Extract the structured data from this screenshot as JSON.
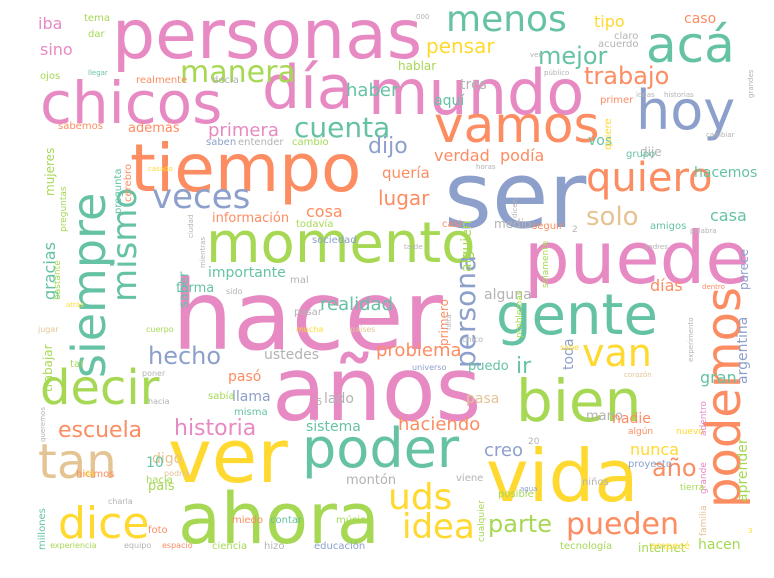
{
  "palette": {
    "pink": "#e78ac3",
    "green": "#66c2a5",
    "orange": "#fc8d62",
    "blue": "#8da0cb",
    "lime": "#a6d854",
    "yellow": "#ffd92f",
    "tan": "#e5c494",
    "gray": "#b3b3b3"
  },
  "words": [
    {
      "text": "hacer",
      "size": 96,
      "color": "pink"
    },
    {
      "text": "ser",
      "size": 92,
      "color": "blue"
    },
    {
      "text": "años",
      "size": 88,
      "color": "pink"
    },
    {
      "text": "ver",
      "size": 74,
      "color": "yellow"
    },
    {
      "text": "vida",
      "size": 72,
      "color": "yellow"
    },
    {
      "text": "ahora",
      "size": 70,
      "color": "lime"
    },
    {
      "text": "puede",
      "size": 72,
      "color": "pink"
    },
    {
      "text": "personas",
      "size": 68,
      "color": "pink"
    },
    {
      "text": "tiempo",
      "size": 66,
      "color": "orange"
    },
    {
      "text": "mundo",
      "size": 62,
      "color": "pink"
    },
    {
      "text": "día",
      "size": 60,
      "color": "pink"
    },
    {
      "text": "chicos",
      "size": 58,
      "color": "pink"
    },
    {
      "text": "momento",
      "size": 56,
      "color": "lime"
    },
    {
      "text": "gente",
      "size": 56,
      "color": "green"
    },
    {
      "text": "bien",
      "size": 58,
      "color": "lime"
    },
    {
      "text": "poder",
      "size": 54,
      "color": "green"
    },
    {
      "text": "hoy",
      "size": 54,
      "color": "blue"
    },
    {
      "text": "vamos",
      "size": 50,
      "color": "orange"
    },
    {
      "text": "decir",
      "size": 48,
      "color": "lime"
    },
    {
      "text": "podemos",
      "size": 48,
      "color": "orange"
    },
    {
      "text": "siempre",
      "size": 46,
      "color": "green"
    },
    {
      "text": "acá",
      "size": 50,
      "color": "green"
    },
    {
      "text": "tan",
      "size": 48,
      "color": "tan"
    },
    {
      "text": "dice",
      "size": 44,
      "color": "yellow"
    },
    {
      "text": "quiero",
      "size": 40,
      "color": "orange"
    },
    {
      "text": "menos",
      "size": 36,
      "color": "green"
    },
    {
      "text": "veces",
      "size": 34,
      "color": "blue"
    },
    {
      "text": "mismo",
      "size": 34,
      "color": "green"
    },
    {
      "text": "van",
      "size": 38,
      "color": "yellow"
    },
    {
      "text": "uds",
      "size": 36,
      "color": "yellow"
    },
    {
      "text": "persona",
      "size": 28,
      "color": "blue"
    },
    {
      "text": "idea",
      "size": 34,
      "color": "yellow"
    },
    {
      "text": "pueden",
      "size": 30,
      "color": "orange"
    },
    {
      "text": "manera",
      "size": 30,
      "color": "lime"
    },
    {
      "text": "cuenta",
      "size": 28,
      "color": "green"
    },
    {
      "text": "solo",
      "size": 26,
      "color": "tan"
    },
    {
      "text": "mejor",
      "size": 24,
      "color": "green"
    },
    {
      "text": "trabajo",
      "size": 24,
      "color": "orange"
    },
    {
      "text": "hecho",
      "size": 24,
      "color": "blue"
    },
    {
      "text": "historia",
      "size": 22,
      "color": "pink"
    },
    {
      "text": "parte",
      "size": 24,
      "color": "lime"
    },
    {
      "text": "escuela",
      "size": 22,
      "color": "orange"
    },
    {
      "text": "dijo",
      "size": 22,
      "color": "blue"
    },
    {
      "text": "año",
      "size": 24,
      "color": "orange"
    },
    {
      "text": "pensar",
      "size": 20,
      "color": "yellow"
    },
    {
      "text": "lugar",
      "size": 20,
      "color": "orange"
    },
    {
      "text": "haber",
      "size": 18,
      "color": "green"
    },
    {
      "text": "primera",
      "size": 18,
      "color": "pink"
    },
    {
      "text": "problema",
      "size": 18,
      "color": "orange"
    },
    {
      "text": "realidad",
      "size": 18,
      "color": "green"
    },
    {
      "text": "haciendo",
      "size": 18,
      "color": "orange"
    },
    {
      "text": "verdad",
      "size": 16,
      "color": "orange"
    },
    {
      "text": "podía",
      "size": 16,
      "color": "orange"
    },
    {
      "text": "cosa",
      "size": 16,
      "color": "orange"
    },
    {
      "text": "quería",
      "size": 15,
      "color": "orange"
    },
    {
      "text": "creo",
      "size": 18,
      "color": "blue"
    },
    {
      "text": "nunca",
      "size": 16,
      "color": "yellow"
    },
    {
      "text": "gran",
      "size": 16,
      "color": "green"
    },
    {
      "text": "días",
      "size": 16,
      "color": "orange"
    },
    {
      "text": "casa",
      "size": 16,
      "color": "green"
    },
    {
      "text": "sino",
      "size": 16,
      "color": "pink"
    },
    {
      "text": "tipo",
      "size": 16,
      "color": "yellow"
    },
    {
      "text": "iba",
      "size": 16,
      "color": "pink"
    },
    {
      "text": "caso",
      "size": 14,
      "color": "orange"
    },
    {
      "text": "tres",
      "size": 14,
      "color": "gray"
    },
    {
      "text": "aquí",
      "size": 14,
      "color": "green"
    },
    {
      "text": "hacemos",
      "size": 14,
      "color": "green"
    },
    {
      "text": "vos",
      "size": 14,
      "color": "green"
    },
    {
      "text": "dije",
      "size": 12,
      "color": "gray"
    },
    {
      "text": "alguna",
      "size": 14,
      "color": "gray"
    },
    {
      "text": "importante",
      "size": 14,
      "color": "green"
    },
    {
      "text": "ustedes",
      "size": 14,
      "color": "gray"
    },
    {
      "text": "información",
      "size": 13,
      "color": "orange"
    },
    {
      "text": "sistema",
      "size": 14,
      "color": "green"
    },
    {
      "text": "pasa",
      "size": 14,
      "color": "tan"
    },
    {
      "text": "puedo",
      "size": 13,
      "color": "green"
    },
    {
      "text": "ir",
      "size": 22,
      "color": "green"
    },
    {
      "text": "toda",
      "size": 14,
      "color": "blue"
    },
    {
      "text": "mano",
      "size": 13,
      "color": "gray"
    },
    {
      "text": "nadie",
      "size": 14,
      "color": "orange"
    },
    {
      "text": "país",
      "size": 13,
      "color": "lime"
    },
    {
      "text": "digo",
      "size": 14,
      "color": "tan"
    },
    {
      "text": "montón",
      "size": 13,
      "color": "gray"
    },
    {
      "text": "hacen",
      "size": 14,
      "color": "lime"
    },
    {
      "text": "internet",
      "size": 12,
      "color": "lime"
    },
    {
      "text": "llama",
      "size": 14,
      "color": "blue"
    },
    {
      "text": "pasó",
      "size": 14,
      "color": "orange"
    },
    {
      "text": "lado",
      "size": 14,
      "color": "gray"
    },
    {
      "text": "además",
      "size": 13,
      "color": "orange"
    },
    {
      "text": "hablar",
      "size": 12,
      "color": "lime"
    },
    {
      "text": "medio",
      "size": 12,
      "color": "gray"
    },
    {
      "text": "forma",
      "size": 13,
      "color": "green"
    },
    {
      "text": "saber",
      "size": 13,
      "color": "green"
    },
    {
      "text": "gracias",
      "size": 16,
      "color": "green"
    },
    {
      "text": "mujeres",
      "size": 12,
      "color": "lime"
    },
    {
      "text": "trabajar",
      "size": 12,
      "color": "lime"
    },
    {
      "text": "aprender",
      "size": 14,
      "color": "lime"
    },
    {
      "text": "argentina",
      "size": 14,
      "color": "blue"
    },
    {
      "text": "parece",
      "size": 12,
      "color": "blue"
    },
    {
      "text": "alguien",
      "size": 14,
      "color": "lime"
    },
    {
      "text": "primero",
      "size": 12,
      "color": "orange"
    },
    {
      "text": "tema",
      "size": 10,
      "color": "lime"
    },
    {
      "text": "dar",
      "size": 10,
      "color": "lime"
    },
    {
      "text": "ojos",
      "size": 10,
      "color": "lime"
    },
    {
      "text": "claro",
      "size": 10,
      "color": "gray"
    },
    {
      "text": "acuerdo",
      "size": 10,
      "color": "gray"
    },
    {
      "text": "decía",
      "size": 10,
      "color": "gray"
    },
    {
      "text": "realmente",
      "size": 10,
      "color": "orange"
    },
    {
      "text": "sabemos",
      "size": 10,
      "color": "orange"
    },
    {
      "text": "saben",
      "size": 10,
      "color": "blue"
    },
    {
      "text": "entender",
      "size": 10,
      "color": "gray"
    },
    {
      "text": "cambio",
      "size": 10,
      "color": "lime"
    },
    {
      "text": "grupo",
      "size": 10,
      "color": "green"
    },
    {
      "text": "primer",
      "size": 10,
      "color": "orange"
    },
    {
      "text": "quiere",
      "size": 10,
      "color": "yellow"
    },
    {
      "text": "seguir",
      "size": 10,
      "color": "orange"
    },
    {
      "text": "amigos",
      "size": 10,
      "color": "green"
    },
    {
      "text": "todavía",
      "size": 10,
      "color": "lime"
    },
    {
      "text": "sociedad",
      "size": 10,
      "color": "blue"
    },
    {
      "text": "casi",
      "size": 10,
      "color": "orange"
    },
    {
      "text": "mal",
      "size": 10,
      "color": "gray"
    },
    {
      "text": "pasar",
      "size": 10,
      "color": "gray"
    },
    {
      "text": "misma",
      "size": 10,
      "color": "green"
    },
    {
      "text": "sabía",
      "size": 10,
      "color": "lime"
    },
    {
      "text": "hacía",
      "size": 10,
      "color": "lime"
    },
    {
      "text": "hicimos",
      "size": 10,
      "color": "orange"
    },
    {
      "text": "millones",
      "size": 10,
      "color": "green"
    },
    {
      "text": "miedo",
      "size": 10,
      "color": "orange"
    },
    {
      "text": "contar",
      "size": 10,
      "color": "green"
    },
    {
      "text": "música",
      "size": 10,
      "color": "lime"
    },
    {
      "text": "ciencia",
      "size": 10,
      "color": "lime"
    },
    {
      "text": "hizo",
      "size": 10,
      "color": "gray"
    },
    {
      "text": "educación",
      "size": 10,
      "color": "blue"
    },
    {
      "text": "tecnología",
      "size": 10,
      "color": "lime"
    },
    {
      "text": "empecé",
      "size": 10,
      "color": "yellow"
    },
    {
      "text": "posible",
      "size": 10,
      "color": "lime"
    },
    {
      "text": "niños",
      "size": 10,
      "color": "gray"
    },
    {
      "text": "proyecto",
      "size": 10,
      "color": "blue"
    },
    {
      "text": "viene",
      "size": 10,
      "color": "gray"
    },
    {
      "text": "foto",
      "size": 10,
      "color": "orange"
    },
    {
      "text": "pregunta",
      "size": 10,
      "color": "green"
    },
    {
      "text": "cerebro",
      "size": 10,
      "color": "orange"
    },
    {
      "text": "preguntas",
      "size": 9,
      "color": "lime"
    },
    {
      "text": "bastante",
      "size": 9,
      "color": "lime"
    },
    {
      "text": "tal",
      "size": 10,
      "color": "lime"
    },
    {
      "text": "cualquier",
      "size": 9,
      "color": "lime"
    },
    {
      "text": "solamente",
      "size": 9,
      "color": "lime"
    },
    {
      "text": "problemas",
      "size": 9,
      "color": "lime"
    },
    {
      "text": "familia",
      "size": 9,
      "color": "tan"
    },
    {
      "text": "grande",
      "size": 9,
      "color": "pink"
    },
    {
      "text": "tierra",
      "size": 9,
      "color": "lime"
    },
    {
      "text": "nuevo",
      "size": 9,
      "color": "yellow"
    },
    {
      "text": "adentro",
      "size": 9,
      "color": "pink"
    },
    {
      "text": "algún",
      "size": 9,
      "color": "orange"
    },
    {
      "text": "chico",
      "size": 8,
      "color": "gray"
    },
    {
      "text": "sido",
      "size": 8,
      "color": "gray"
    },
    {
      "text": "mucha",
      "size": 8,
      "color": "yellow"
    },
    {
      "text": "países",
      "size": 8,
      "color": "tan"
    },
    {
      "text": "jugar",
      "size": 8,
      "color": "tan"
    },
    {
      "text": "cuerpo",
      "size": 8,
      "color": "lime"
    },
    {
      "text": "poner",
      "size": 8,
      "color": "gray"
    },
    {
      "text": "universo",
      "size": 8,
      "color": "blue"
    },
    {
      "text": "hacia",
      "size": 8,
      "color": "gray"
    },
    {
      "text": "podría",
      "size": 8,
      "color": "tan"
    },
    {
      "text": "da",
      "size": 8,
      "color": "yellow"
    },
    {
      "text": "charla",
      "size": 8,
      "color": "gray"
    },
    {
      "text": "experiencia",
      "size": 8,
      "color": "lime"
    },
    {
      "text": "equipo",
      "size": 8,
      "color": "gray"
    },
    {
      "text": "espacio",
      "size": 8,
      "color": "orange"
    },
    {
      "text": "agua",
      "size": 7,
      "color": "blue"
    },
    {
      "text": "corazón",
      "size": 7,
      "color": "tan"
    },
    {
      "text": "sabe",
      "size": 8,
      "color": "yellow"
    },
    {
      "text": "experimento",
      "size": 7,
      "color": "gray"
    },
    {
      "text": "dentro",
      "size": 7,
      "color": "orange"
    },
    {
      "text": "palabra",
      "size": 7,
      "color": "gray"
    },
    {
      "text": "padres",
      "size": 7,
      "color": "gray"
    },
    {
      "text": "horas",
      "size": 7,
      "color": "gray"
    },
    {
      "text": "dicen",
      "size": 7,
      "color": "gray"
    },
    {
      "text": "tarde",
      "size": 7,
      "color": "gray"
    },
    {
      "text": "casado",
      "size": 7,
      "color": "yellow"
    },
    {
      "text": "ciudad",
      "size": 7,
      "color": "gray"
    },
    {
      "text": "mientras",
      "size": 7,
      "color": "gray"
    },
    {
      "text": "falta",
      "size": 7,
      "color": "gray"
    },
    {
      "text": "atrás",
      "size": 7,
      "color": "yellow"
    },
    {
      "text": "queremos",
      "size": 7,
      "color": "gray"
    },
    {
      "text": "ideas",
      "size": 7,
      "color": "gray"
    },
    {
      "text": "historias",
      "size": 7,
      "color": "gray"
    },
    {
      "text": "público",
      "size": 7,
      "color": "gray"
    },
    {
      "text": "grandes",
      "size": 7,
      "color": "gray"
    },
    {
      "text": "cambiar",
      "size": 7,
      "color": "gray"
    },
    {
      "text": "llegar",
      "size": 7,
      "color": "green"
    },
    {
      "text": "ven",
      "size": 7,
      "color": "gray"
    },
    {
      "text": "000",
      "size": 7,
      "color": "gray"
    },
    {
      "text": "10",
      "size": 14,
      "color": "green"
    },
    {
      "text": "5",
      "size": 10,
      "color": "gray"
    },
    {
      "text": "20",
      "size": 9,
      "color": "gray"
    },
    {
      "text": "2",
      "size": 9,
      "color": "gray"
    },
    {
      "text": "3",
      "size": 7,
      "color": "yellow"
    }
  ]
}
